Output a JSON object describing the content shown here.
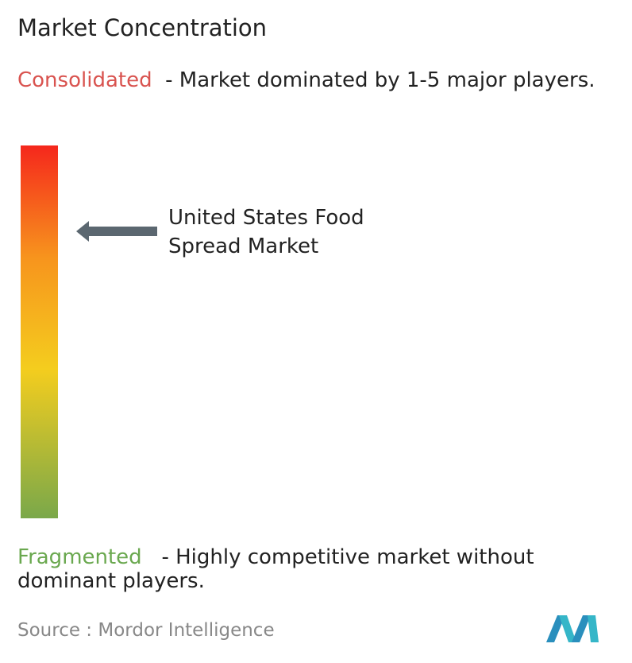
{
  "header": {
    "title": "Market Concentration"
  },
  "consolidated": {
    "label": "Consolidated",
    "description": "- Market dominated by 1-5 major players."
  },
  "marker": {
    "label": "United States Food Spread Market"
  },
  "fragmented": {
    "label": "Fragmented",
    "description": "- Highly competitive market without dominant players."
  },
  "footer": {
    "source_label": "Source :",
    "source": "Mordor Intelligence"
  }
}
